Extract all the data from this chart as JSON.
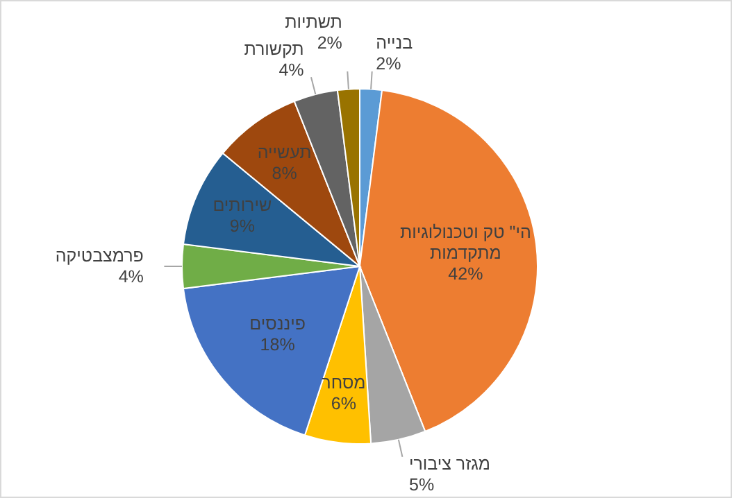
{
  "chart_data": {
    "type": "pie",
    "categories": [
      "בנייה",
      "הי\" טק וטכנולוגיות מתקדמות",
      "מגזר ציבורי",
      "מסחר",
      "פיננסים",
      "פרמצבטיקה",
      "שירותים",
      "תעשייה",
      "תקשורת",
      "תשתיות"
    ],
    "values": [
      2,
      42,
      5,
      6,
      18,
      4,
      9,
      8,
      4,
      2
    ],
    "value_labels": [
      "2%",
      "42%",
      "5%",
      "6%",
      "18%",
      "4%",
      "9%",
      "8%",
      "4%",
      "2%"
    ],
    "colors": [
      "#5b9bd5",
      "#ed7d31",
      "#a5a5a5",
      "#ffc000",
      "#4472c4",
      "#70ad47",
      "#255e91",
      "#9e480e",
      "#636363",
      "#997300"
    ]
  }
}
